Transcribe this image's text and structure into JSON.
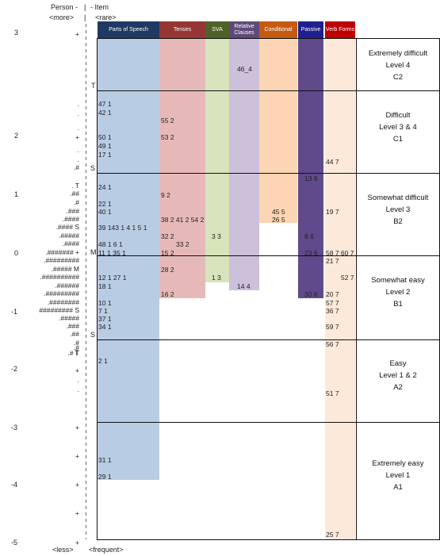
{
  "axis": {
    "person_label": "Person -",
    "item_label": "- Item",
    "more": "<more>",
    "rare": "<rare>",
    "less": "<less>",
    "frequent": "<frequent>",
    "scale": [
      "3",
      "2",
      "1",
      "0",
      "-1",
      "-2",
      "-3",
      "-4",
      "-5"
    ]
  },
  "categories": [
    {
      "label": "Parts of Speech",
      "color": "#1f3864"
    },
    {
      "label": "Tenses",
      "color": "#943634"
    },
    {
      "label": "SVA",
      "color": "#4f6228"
    },
    {
      "label": "Relative Clauses",
      "color": "#5f497a"
    },
    {
      "label": "Conditional",
      "color": "#c55a11"
    },
    {
      "label": "Passive",
      "color": "#1f1f8f"
    },
    {
      "label": "Verb Forms",
      "color": "#c00000"
    }
  ],
  "levels": [
    {
      "title": "Extremely difficult",
      "level": "Level 4",
      "cefr": "C2"
    },
    {
      "title": "Difficult",
      "level": "Level 3 & 4",
      "cefr": "C1"
    },
    {
      "title": "Somewhat difficult",
      "level": "Level 3",
      "cefr": "B2"
    },
    {
      "title": "Somewhat easy",
      "level": "Level 2",
      "cefr": "B1"
    },
    {
      "title": "Easy",
      "level": "Level 1 & 2",
      "cefr": "A2"
    },
    {
      "title": "Extremely easy",
      "level": "Level 1",
      "cefr": "A1"
    }
  ],
  "person_marks": [
    "+",
    ".",
    ".",
    ".",
    "+",
    ".",
    ".",
    ".#",
    ". T",
    ".##",
    ".#",
    ".###",
    ".####",
    ".#### S",
    ".#####",
    ".####",
    ".####### +",
    ".#########",
    ".##### M",
    ".##########",
    ".######",
    ".#########",
    ".########",
    "######### S",
    ".#####",
    ".###",
    ".##",
    ".#",
    ".#",
    ".# T",
    "+",
    ".",
    ".",
    "+",
    "+",
    "+",
    "+",
    "+"
  ],
  "axis_marks": [
    "T",
    "S",
    "M",
    "S",
    "T"
  ],
  "items": {
    "pos": [
      "47 1",
      "42 1",
      "50 1",
      "49 1",
      "17 1",
      "24 1",
      "22 1",
      "40 1",
      "39 143  1  4 1  5 1",
      "48 1 6 1",
      "11 1 35 1",
      "12 1 27 1",
      "18 1",
      "10 1",
      "7 1",
      "37 1",
      "34 1",
      "2 1",
      "31 1",
      "29 1"
    ],
    "tenses": [
      "55 2",
      "53 2",
      "9 2",
      "38 2 41 2 54 2",
      "32 2",
      "33 2",
      "15 2",
      "28 2",
      "16 2"
    ],
    "sva": [
      "3 3",
      "1 3"
    ],
    "rel": [
      "46_4",
      "14 4"
    ],
    "cond": [
      "45 5",
      "26 5"
    ],
    "passive": [
      "13 6",
      "8 6",
      "23 6",
      "30 6"
    ],
    "verb": [
      "44 7",
      "19 7",
      "58 7 60 7",
      "21 7",
      "52 7",
      "20 7",
      "57 7",
      "36 7",
      "59 7",
      "56 7",
      "51 7",
      "25 7"
    ]
  }
}
